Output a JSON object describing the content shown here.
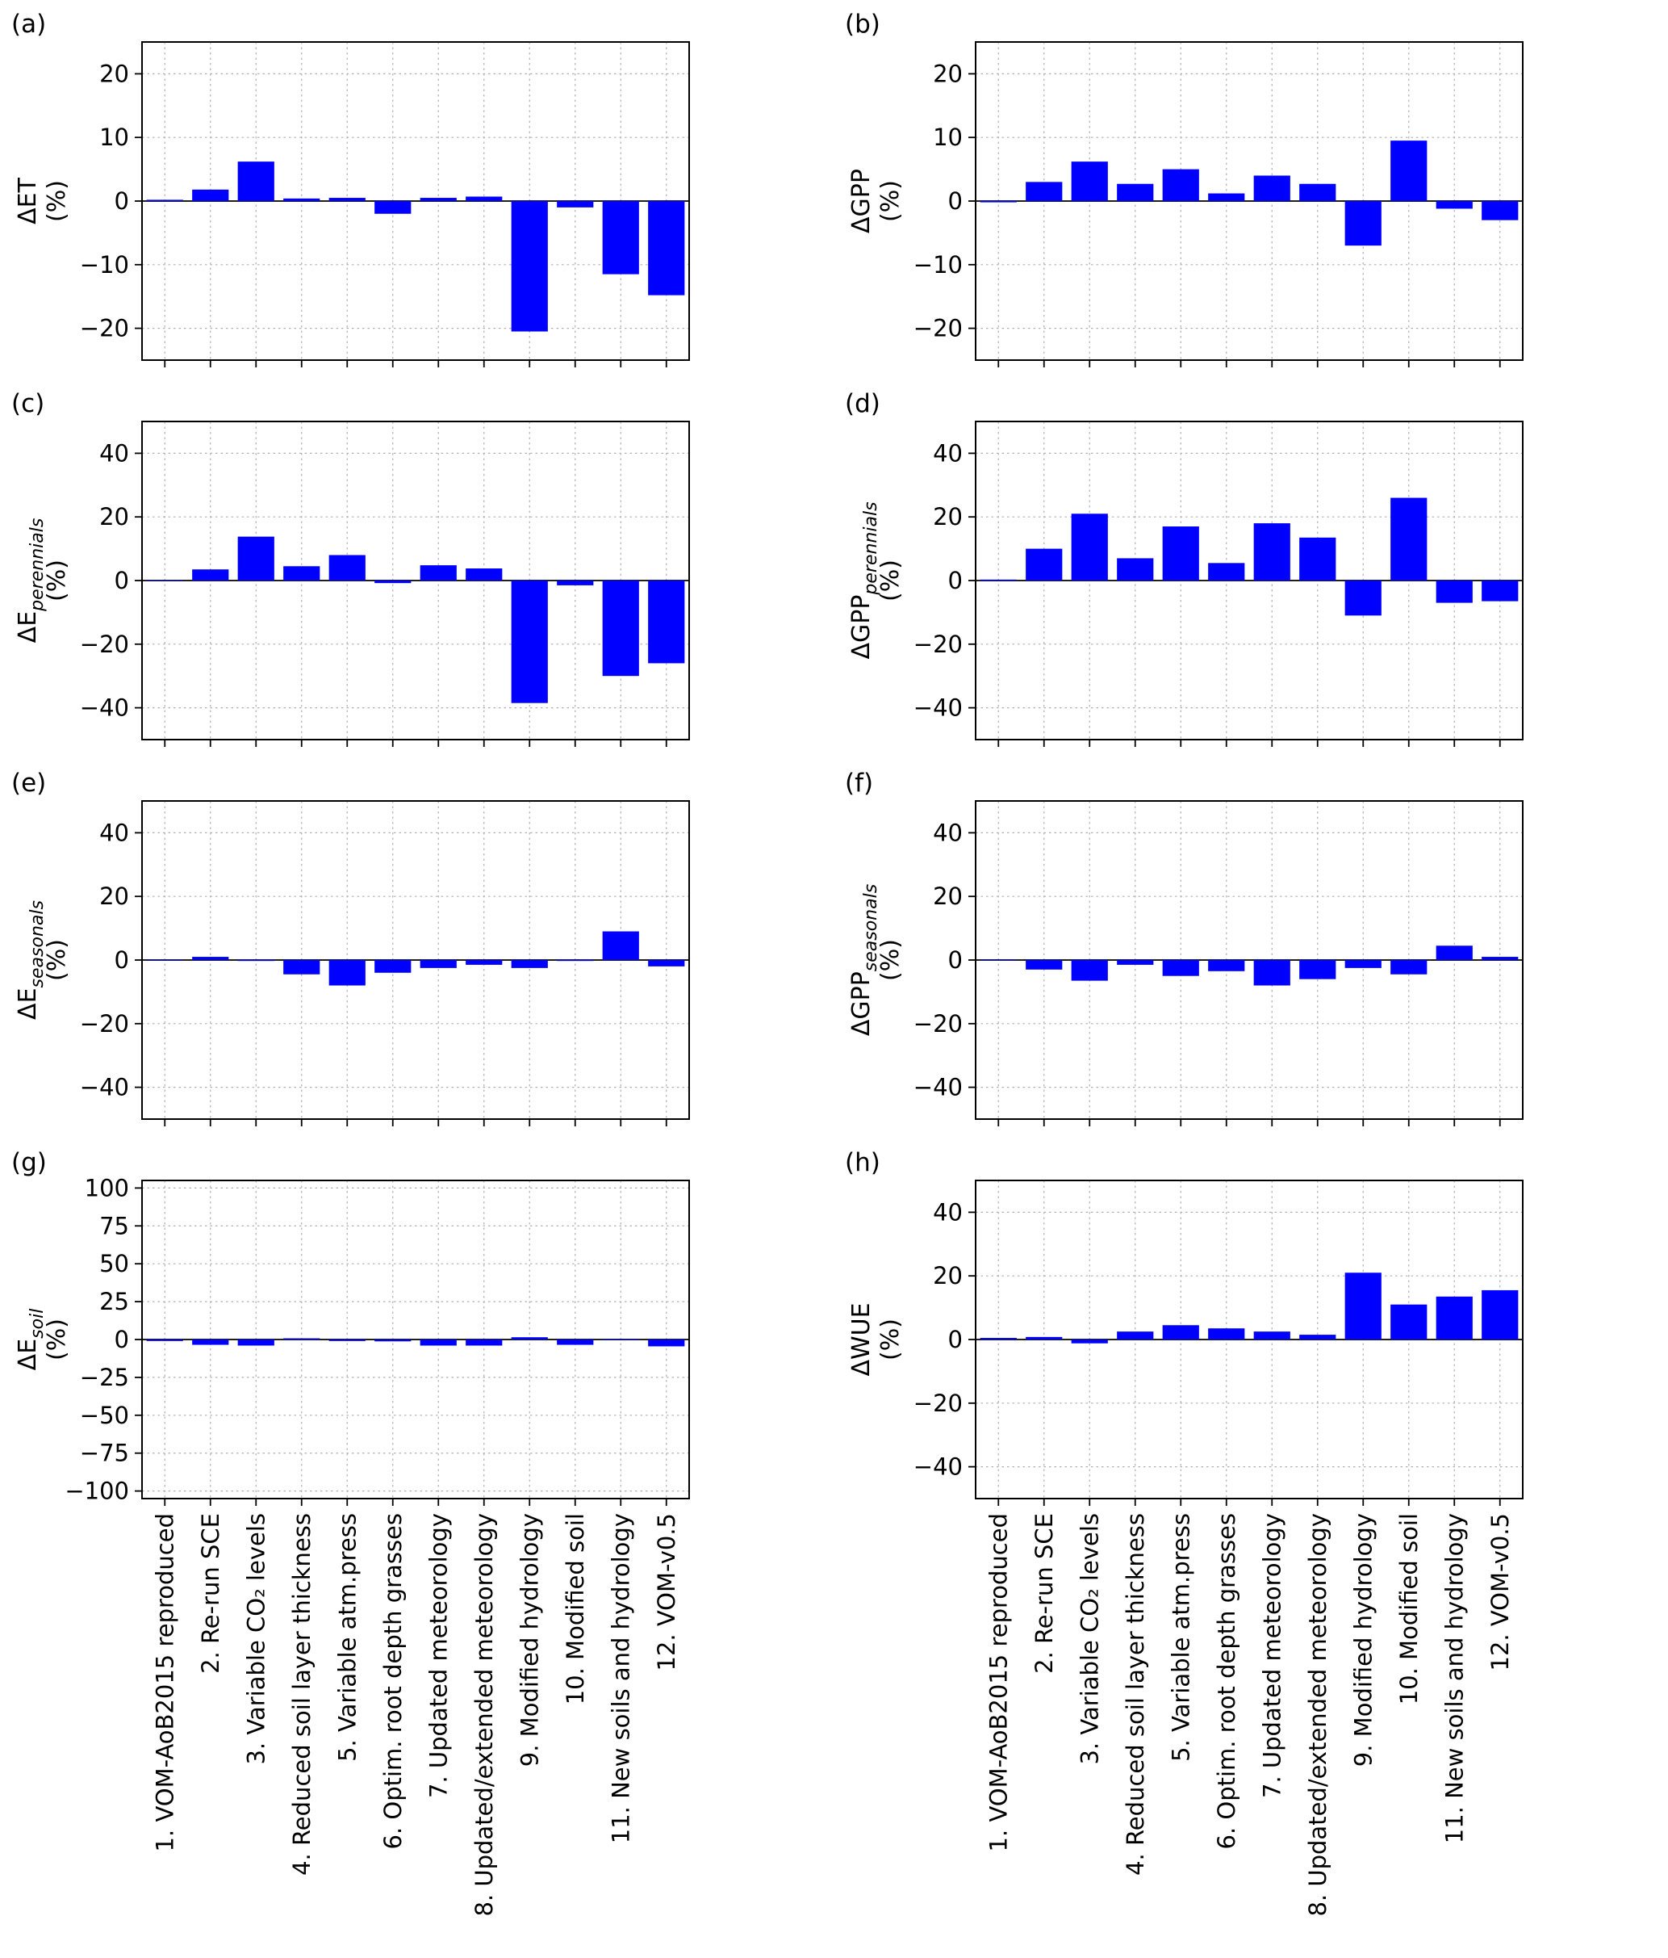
{
  "chart_data": {
    "type": "bar",
    "title": "",
    "bar_color": "#0000ff",
    "grid": true,
    "legend": "none",
    "categories": [
      "1. VOM-AoB2015 reproduced",
      "2. Re-run SCE",
      "3. Variable CO₂ levels",
      "4. Reduced soil layer thickness",
      "5. Variable atm.press",
      "6. Optim. root depth grasses",
      "7. Updated meteorology",
      "8. Updated/extended meteorology",
      "9. Modified hydrology",
      "10. Modified soil",
      "11. New soils and hydrology",
      "12. VOM-v0.5"
    ],
    "panels": [
      {
        "label": "(a)",
        "ylabel": {
          "prefix": "ΔET",
          "subscript": "",
          "unit": "(%)"
        },
        "ylim": [
          -25,
          25
        ],
        "yticks": [
          20,
          10,
          0,
          -10,
          -20
        ],
        "values": [
          0.2,
          1.8,
          6.2,
          0.4,
          0.5,
          -2.0,
          0.5,
          0.7,
          -20.5,
          -1.0,
          -11.5,
          -14.8
        ],
        "show_xlabels": false
      },
      {
        "label": "(b)",
        "ylabel": {
          "prefix": "ΔGPP",
          "subscript": "",
          "unit": "(%)"
        },
        "ylim": [
          -25,
          25
        ],
        "yticks": [
          20,
          10,
          0,
          -10,
          -20
        ],
        "values": [
          -0.2,
          3.0,
          6.2,
          2.7,
          5.0,
          1.2,
          4.0,
          2.7,
          -7.0,
          9.5,
          -1.2,
          -3.0
        ],
        "show_xlabels": false
      },
      {
        "label": "(c)",
        "ylabel": {
          "prefix": "ΔE",
          "subscript": "perennials",
          "unit": "(%)"
        },
        "ylim": [
          -50,
          50
        ],
        "yticks": [
          40,
          20,
          0,
          -20,
          -40
        ],
        "values": [
          0.2,
          3.5,
          13.8,
          4.5,
          8.0,
          -0.8,
          4.8,
          3.8,
          -38.5,
          -1.5,
          -30.0,
          -26.0
        ],
        "show_xlabels": false
      },
      {
        "label": "(d)",
        "ylabel": {
          "prefix": "ΔGPP",
          "subscript": "perennials",
          "unit": "(%)"
        },
        "ylim": [
          -50,
          50
        ],
        "yticks": [
          40,
          20,
          0,
          -20,
          -40
        ],
        "values": [
          0.3,
          10.0,
          21.0,
          7.0,
          17.0,
          5.5,
          18.0,
          13.5,
          -11.0,
          26.0,
          -7.0,
          -6.5
        ],
        "show_xlabels": false
      },
      {
        "label": "(e)",
        "ylabel": {
          "prefix": "ΔE",
          "subscript": "seasonals",
          "unit": "(%)"
        },
        "ylim": [
          -50,
          50
        ],
        "yticks": [
          40,
          20,
          0,
          -20,
          -40
        ],
        "values": [
          0.2,
          1.0,
          -0.3,
          -4.5,
          -8.0,
          -4.0,
          -2.5,
          -1.5,
          -2.5,
          -0.3,
          9.0,
          -2.0
        ],
        "show_xlabels": false
      },
      {
        "label": "(f)",
        "ylabel": {
          "prefix": "ΔGPP",
          "subscript": "seasonals",
          "unit": "(%)"
        },
        "ylim": [
          -50,
          50
        ],
        "yticks": [
          40,
          20,
          0,
          -20,
          -40
        ],
        "values": [
          -0.2,
          -3.0,
          -6.5,
          -1.5,
          -5.0,
          -3.5,
          -8.0,
          -6.0,
          -2.5,
          -4.5,
          4.5,
          1.0
        ],
        "show_xlabels": false
      },
      {
        "label": "(g)",
        "ylabel": {
          "prefix": "ΔE",
          "subscript": "soil",
          "unit": "(%)"
        },
        "ylim": [
          -105,
          105
        ],
        "yticks": [
          100,
          75,
          50,
          25,
          0,
          -25,
          -50,
          -75,
          -100
        ],
        "values": [
          -1.0,
          -3.5,
          -4.0,
          0.8,
          -1.0,
          -1.2,
          -4.0,
          -4.0,
          1.5,
          -3.5,
          0.5,
          -4.5
        ],
        "show_xlabels": true
      },
      {
        "label": "(h)",
        "ylabel": {
          "prefix": "ΔWUE",
          "subscript": "",
          "unit": "(%)"
        },
        "ylim": [
          -50,
          50
        ],
        "yticks": [
          40,
          20,
          0,
          -20,
          -40
        ],
        "values": [
          0.5,
          0.8,
          -1.2,
          2.5,
          4.5,
          3.5,
          2.5,
          1.5,
          21.0,
          11.0,
          13.5,
          15.5
        ],
        "show_xlabels": true
      }
    ]
  }
}
